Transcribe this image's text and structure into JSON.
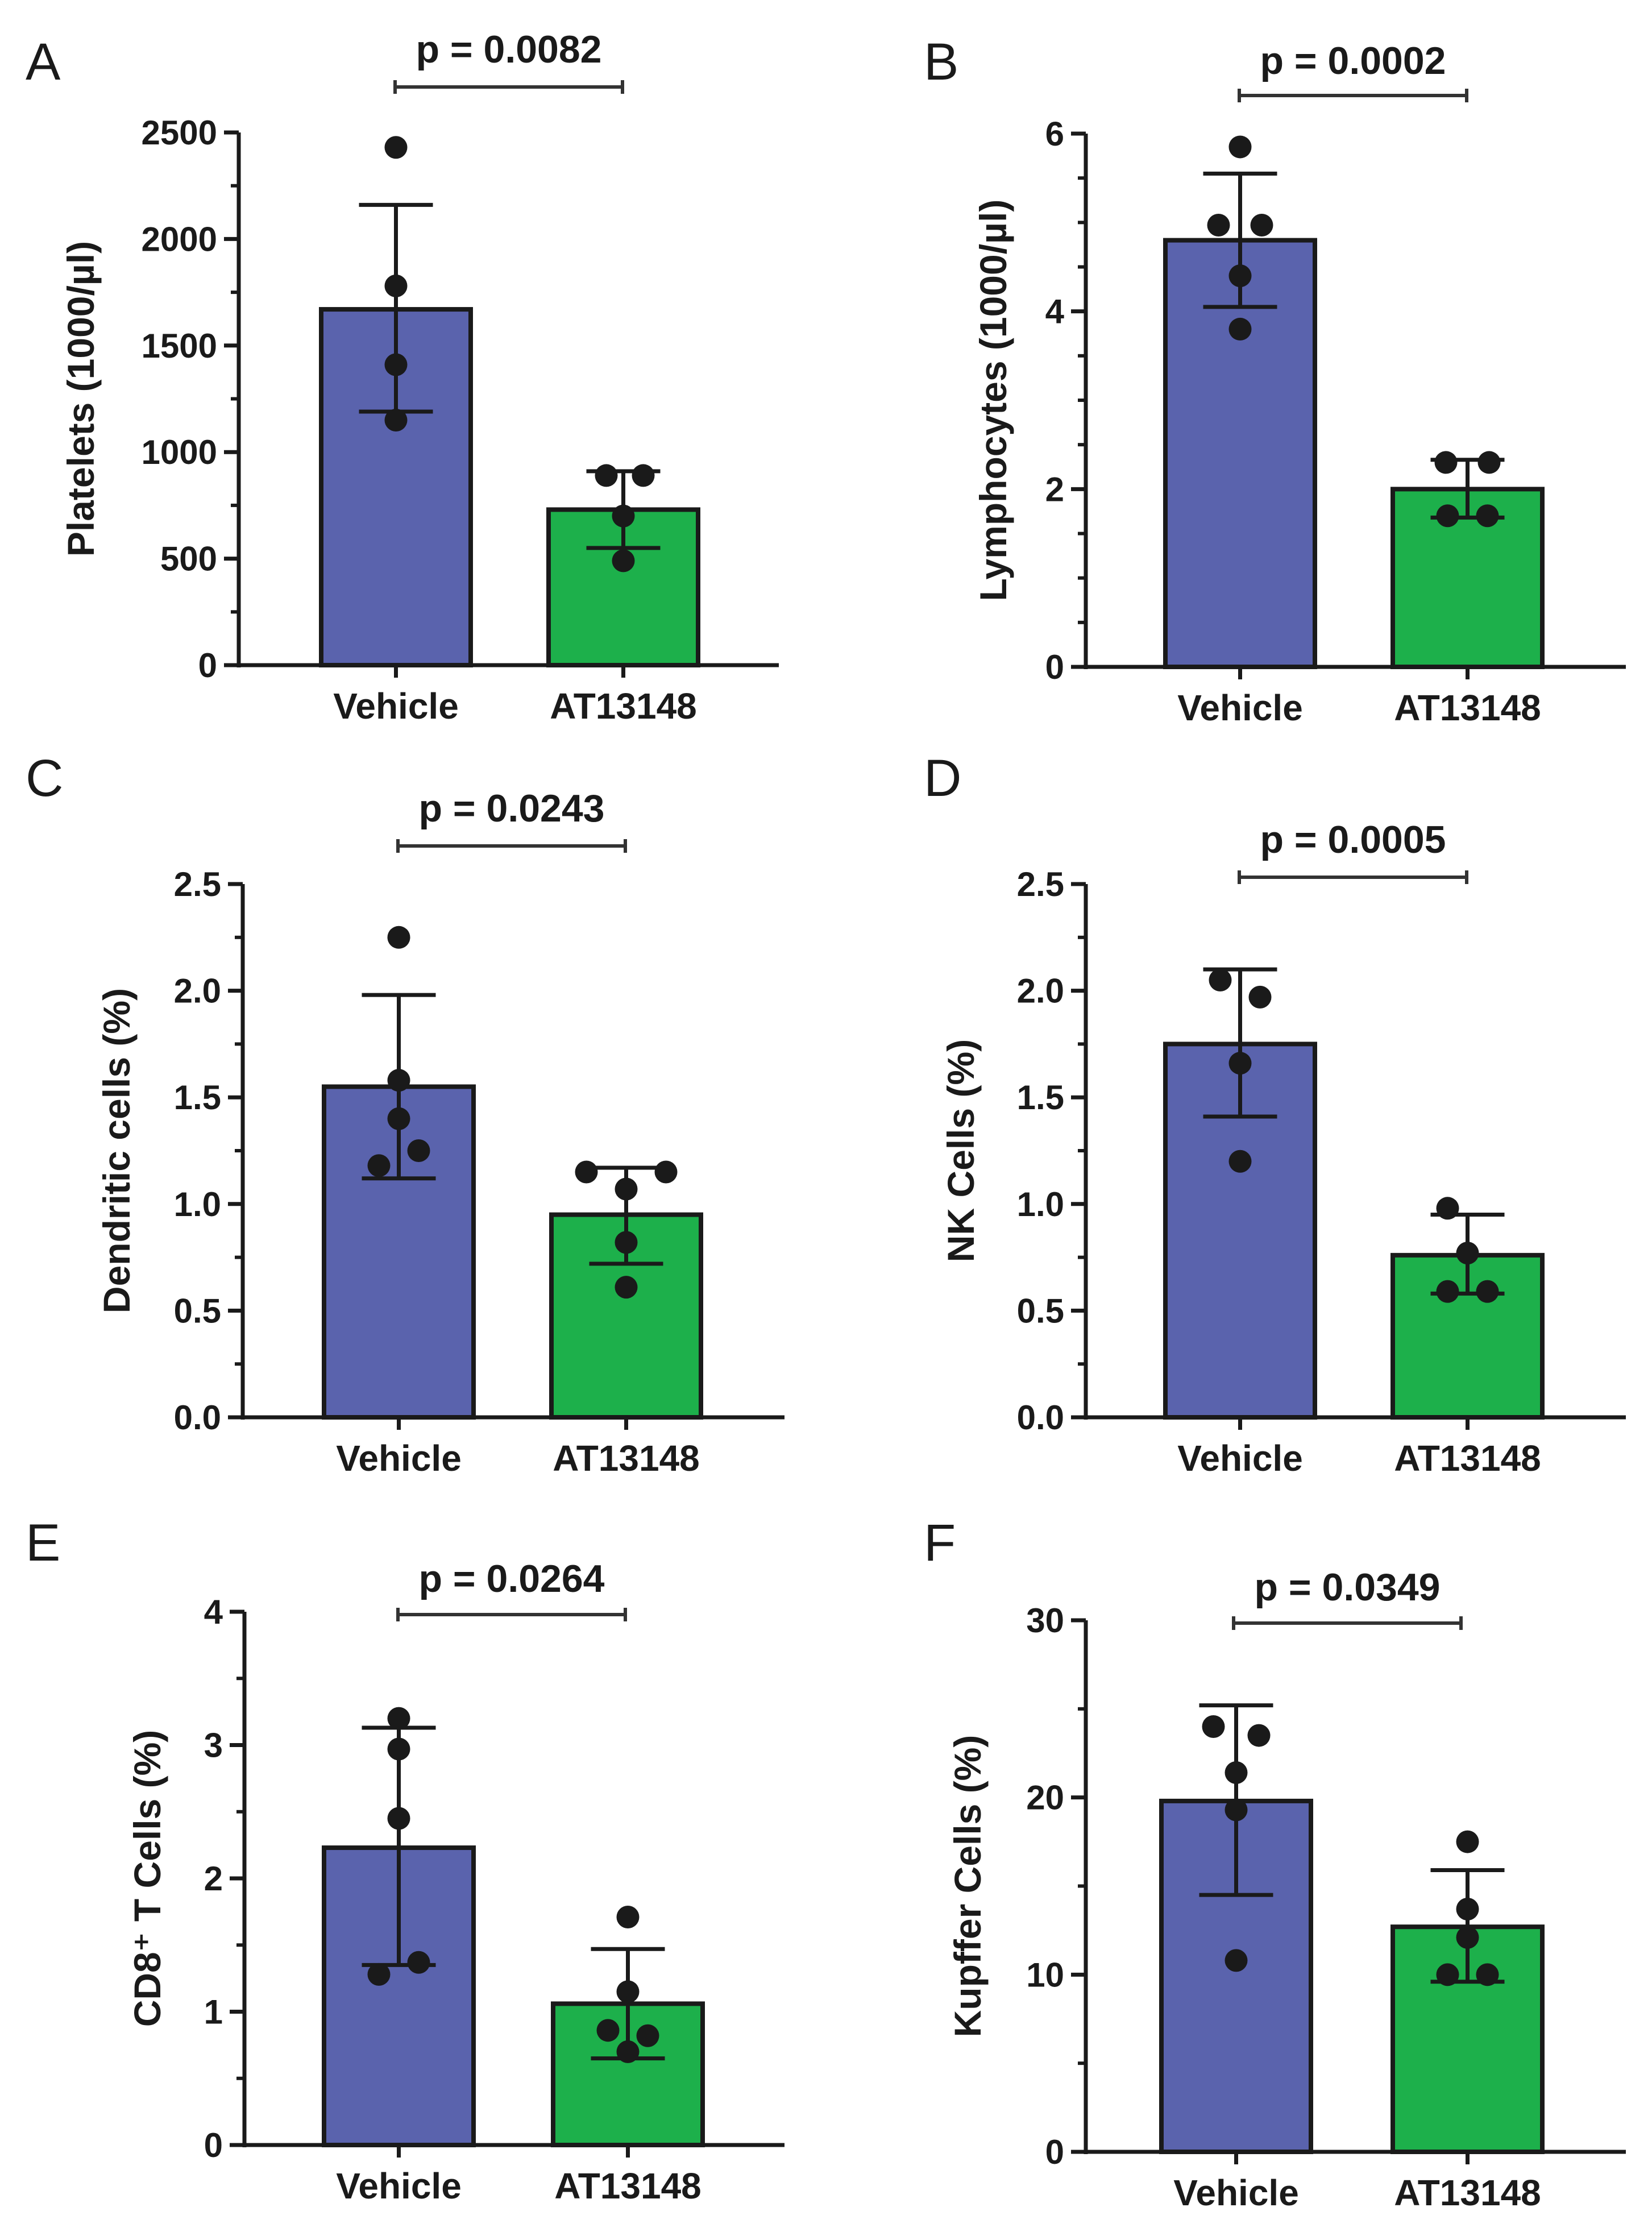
{
  "figure": {
    "background": "#ffffff",
    "bar_colors": {
      "Vehicle": "#5a63ad",
      "AT13148": "#1db04b"
    },
    "line_color": "#1a1a1a"
  },
  "chart_data": [
    {
      "panel": "A",
      "type": "bar",
      "categories": [
        "Vehicle",
        "AT13148"
      ],
      "values": [
        1670,
        730
      ],
      "error": [
        [
          1190,
          2160
        ],
        [
          550,
          910
        ]
      ],
      "points": [
        [
          2430,
          1780,
          1410,
          1150
        ],
        [
          890,
          890,
          700,
          490
        ]
      ],
      "ylabel": "Platelets (1000/µl)",
      "ylim": [
        0,
        2500
      ],
      "yticks": [
        0,
        500,
        1000,
        1500,
        2000,
        2500
      ],
      "ytick_labels": [
        "0",
        "500",
        "1000",
        "1500",
        "2000",
        "2500"
      ],
      "minor_per_major": 2,
      "p_value": "p = 0.0082"
    },
    {
      "panel": "B",
      "type": "bar",
      "categories": [
        "Vehicle",
        "AT13148"
      ],
      "values": [
        4.8,
        2.0
      ],
      "error": [
        [
          4.05,
          5.55
        ],
        [
          1.68,
          2.33
        ]
      ],
      "points": [
        [
          5.85,
          4.97,
          4.97,
          4.4,
          3.8
        ],
        [
          2.3,
          2.3,
          1.7,
          1.7
        ]
      ],
      "ylabel": "Lymphocytes (1000/µl)",
      "ylim": [
        0,
        6
      ],
      "yticks": [
        0,
        2,
        4,
        6
      ],
      "ytick_labels": [
        "0",
        "2",
        "4",
        "6"
      ],
      "minor_per_major": 4,
      "p_value": "p = 0.0002"
    },
    {
      "panel": "C",
      "type": "bar",
      "categories": [
        "Vehicle",
        "AT13148"
      ],
      "values": [
        1.55,
        0.95
      ],
      "error": [
        [
          1.12,
          1.98
        ],
        [
          0.72,
          1.17
        ]
      ],
      "points": [
        [
          2.25,
          1.58,
          1.4,
          1.25,
          1.18
        ],
        [
          1.15,
          1.07,
          1.15,
          0.82,
          0.61
        ]
      ],
      "ylabel": "Dendritic cells (%)",
      "ylim": [
        0,
        2.5
      ],
      "yticks": [
        0,
        0.5,
        1.0,
        1.5,
        2.0,
        2.5
      ],
      "ytick_labels": [
        "0.0",
        "0.5",
        "1.0",
        "1.5",
        "2.0",
        "2.5"
      ],
      "minor_per_major": 2,
      "p_value": "p = 0.0243"
    },
    {
      "panel": "D",
      "type": "bar",
      "categories": [
        "Vehicle",
        "AT13148"
      ],
      "values": [
        1.75,
        0.76
      ],
      "error": [
        [
          1.41,
          2.1
        ],
        [
          0.58,
          0.95
        ]
      ],
      "points": [
        [
          2.05,
          1.97,
          1.66,
          1.2
        ],
        [
          0.98,
          0.77,
          0.59,
          0.59
        ]
      ],
      "ylabel": "NK Cells (%)",
      "ylim": [
        0,
        2.5
      ],
      "yticks": [
        0,
        0.5,
        1.0,
        1.5,
        2.0,
        2.5
      ],
      "ytick_labels": [
        "0.0",
        "0.5",
        "1.0",
        "1.5",
        "2.0",
        "2.5"
      ],
      "minor_per_major": 2,
      "p_value": "p = 0.0005"
    },
    {
      "panel": "E",
      "type": "bar",
      "categories": [
        "Vehicle",
        "AT13148"
      ],
      "values": [
        2.23,
        1.06
      ],
      "error": [
        [
          1.35,
          3.13
        ],
        [
          0.65,
          1.47
        ]
      ],
      "points": [
        [
          3.2,
          2.97,
          2.45,
          1.37,
          1.28
        ],
        [
          1.71,
          1.15,
          0.86,
          0.82,
          0.7
        ]
      ],
      "ylabel": "CD8⁺ T Cells (%)",
      "ylim": [
        0,
        4
      ],
      "yticks": [
        0,
        1,
        2,
        3,
        4
      ],
      "ytick_labels": [
        "0",
        "1",
        "2",
        "3",
        "4"
      ],
      "minor_per_major": 2,
      "p_value": "p = 0.0264"
    },
    {
      "panel": "F",
      "type": "bar",
      "categories": [
        "Vehicle",
        "AT13148"
      ],
      "values": [
        19.8,
        12.7
      ],
      "error": [
        [
          14.5,
          25.2
        ],
        [
          9.6,
          15.9
        ]
      ],
      "points": [
        [
          24.0,
          23.5,
          21.4,
          19.3,
          10.8
        ],
        [
          17.5,
          13.7,
          12.1,
          10.0,
          10.0
        ]
      ],
      "ylabel": "Kupffer Cells (%)",
      "ylim": [
        0,
        30
      ],
      "yticks": [
        0,
        10,
        20,
        30
      ],
      "ytick_labels": [
        "0",
        "10",
        "20",
        "30"
      ],
      "minor_per_major": 2,
      "p_value": "p = 0.0349"
    }
  ]
}
